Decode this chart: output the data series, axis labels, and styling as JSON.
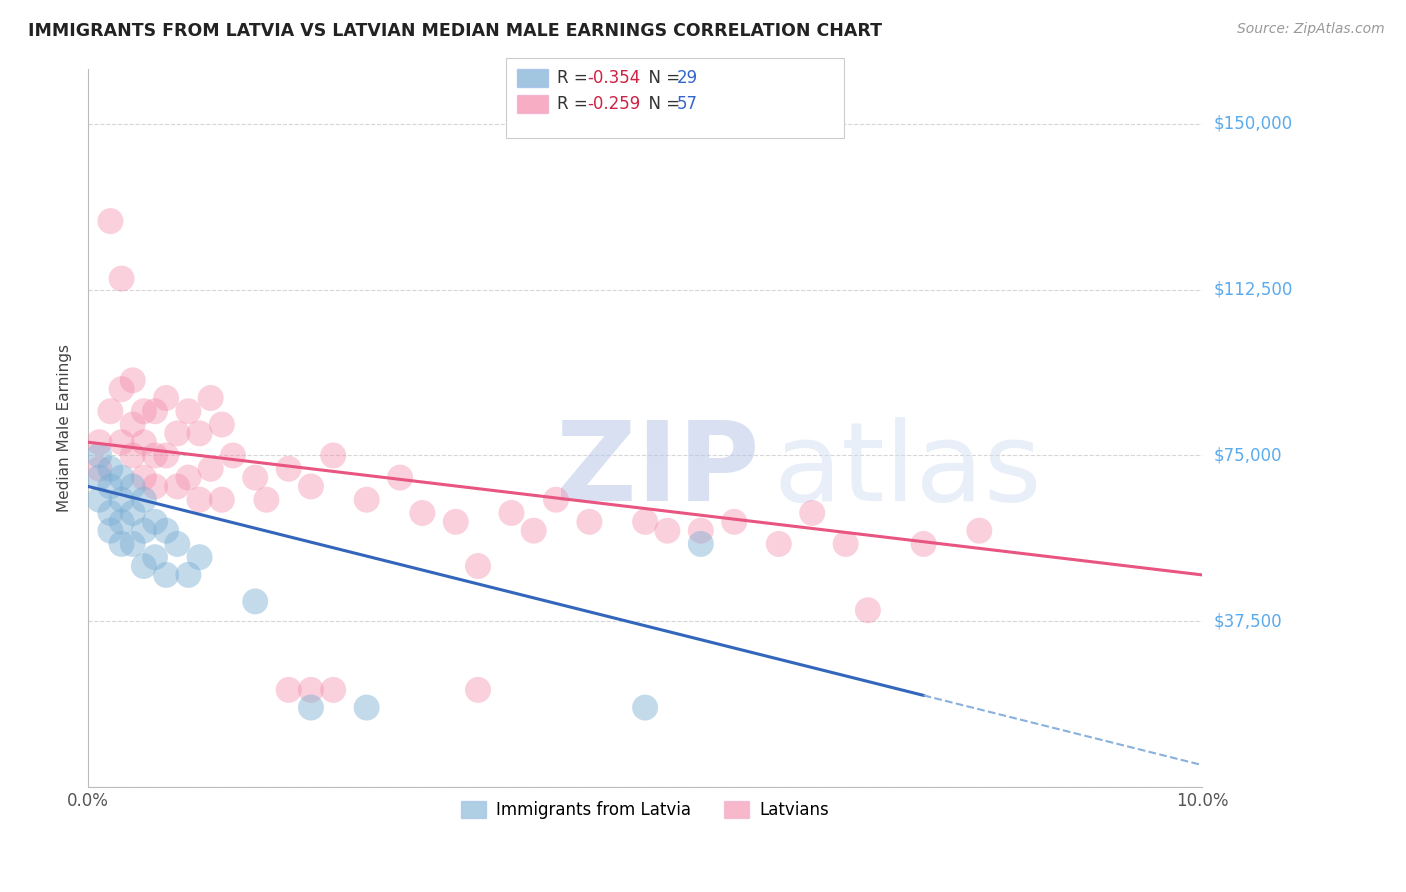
{
  "title": "IMMIGRANTS FROM LATVIA VS LATVIAN MEDIAN MALE EARNINGS CORRELATION CHART",
  "source": "Source: ZipAtlas.com",
  "ylabel": "Median Male Earnings",
  "xlim": [
    0.0,
    0.1
  ],
  "ylim": [
    0,
    162500
  ],
  "yticks": [
    0,
    37500,
    75000,
    112500,
    150000
  ],
  "ytick_labels": [
    "",
    "$37,500",
    "$75,000",
    "$112,500",
    "$150,000"
  ],
  "legend_label1": "Immigrants from Latvia",
  "legend_label2": "Latvians",
  "R1": -0.354,
  "N1": 29,
  "R2": -0.259,
  "N2": 57,
  "color1": "#7bafd4",
  "color2": "#f48aab",
  "background": "#ffffff",
  "watermark_zip": "ZIP",
  "watermark_atlas": "atlas",
  "grid_color": "#cccccc",
  "right_label_color": "#5aaaee",
  "blue_scatter_x": [
    0.001,
    0.001,
    0.001,
    0.002,
    0.002,
    0.002,
    0.002,
    0.003,
    0.003,
    0.003,
    0.003,
    0.004,
    0.004,
    0.004,
    0.005,
    0.005,
    0.005,
    0.006,
    0.006,
    0.007,
    0.007,
    0.008,
    0.009,
    0.01,
    0.015,
    0.02,
    0.025,
    0.05,
    0.055
  ],
  "blue_scatter_y": [
    75000,
    70000,
    65000,
    72000,
    68000,
    62000,
    58000,
    70000,
    65000,
    60000,
    55000,
    68000,
    62000,
    55000,
    65000,
    58000,
    50000,
    60000,
    52000,
    58000,
    48000,
    55000,
    48000,
    52000,
    42000,
    18000,
    18000,
    18000,
    55000
  ],
  "pink_scatter_x": [
    0.001,
    0.001,
    0.002,
    0.002,
    0.003,
    0.003,
    0.003,
    0.004,
    0.004,
    0.004,
    0.005,
    0.005,
    0.005,
    0.006,
    0.006,
    0.006,
    0.007,
    0.007,
    0.008,
    0.008,
    0.009,
    0.009,
    0.01,
    0.01,
    0.011,
    0.011,
    0.012,
    0.012,
    0.013,
    0.015,
    0.016,
    0.018,
    0.02,
    0.022,
    0.025,
    0.028,
    0.03,
    0.033,
    0.035,
    0.038,
    0.04,
    0.042,
    0.045,
    0.05,
    0.052,
    0.055,
    0.058,
    0.062,
    0.065,
    0.068,
    0.07,
    0.075,
    0.08,
    0.035,
    0.02,
    0.018,
    0.022
  ],
  "pink_scatter_y": [
    78000,
    72000,
    128000,
    85000,
    115000,
    90000,
    78000,
    92000,
    82000,
    75000,
    85000,
    78000,
    70000,
    85000,
    75000,
    68000,
    88000,
    75000,
    80000,
    68000,
    85000,
    70000,
    80000,
    65000,
    88000,
    72000,
    82000,
    65000,
    75000,
    70000,
    65000,
    72000,
    68000,
    75000,
    65000,
    70000,
    62000,
    60000,
    50000,
    62000,
    58000,
    65000,
    60000,
    60000,
    58000,
    58000,
    60000,
    55000,
    62000,
    55000,
    40000,
    55000,
    58000,
    22000,
    22000,
    22000,
    22000
  ],
  "line1_x0": 0.0,
  "line1_x1": 0.1,
  "line1_y0": 68000,
  "line1_y1": 5000,
  "line1_solid_end": 0.075,
  "line2_x0": 0.0,
  "line2_x1": 0.1,
  "line2_y0": 78000,
  "line2_y1": 48000
}
